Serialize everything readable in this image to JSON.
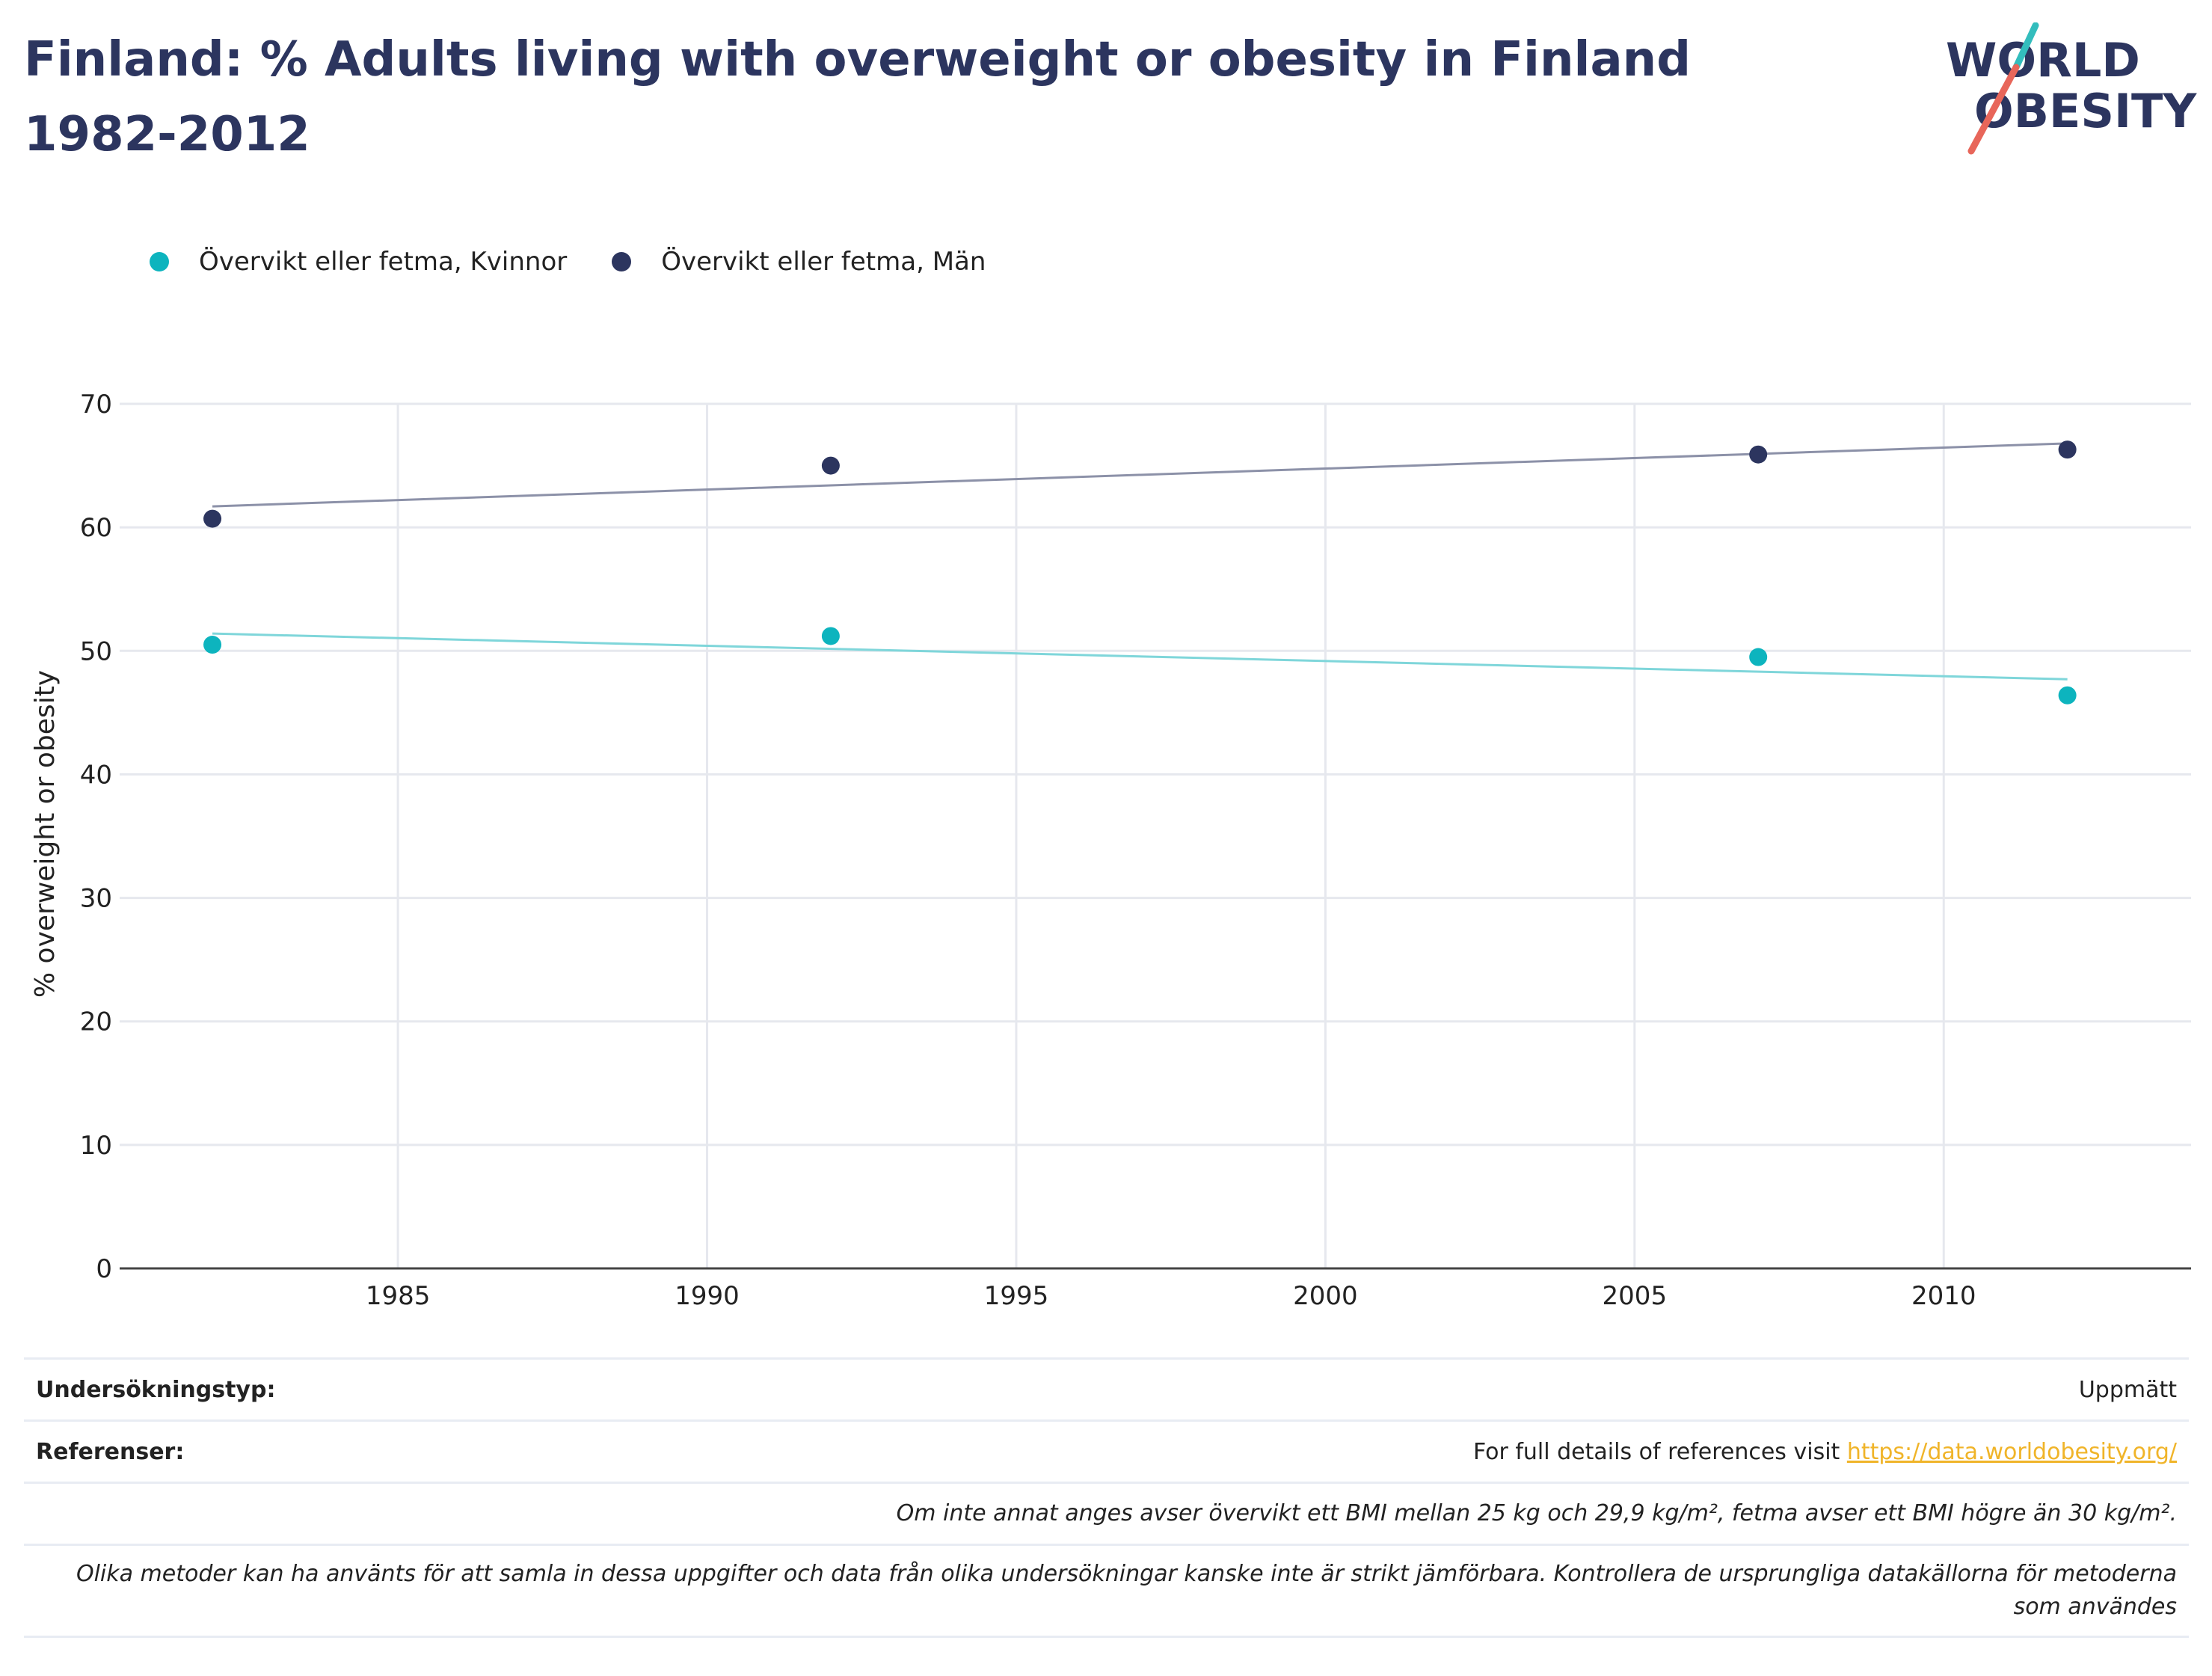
{
  "title": "Finland: % Adults living with overweight or obesity in Finland 1982-2012",
  "logo": {
    "line1": "WORLD",
    "line2": "OBESITY",
    "text_color": "#2c355f",
    "accent_teal": "#33bdbd",
    "accent_red": "#e8665a"
  },
  "legend": [
    {
      "label": "Övervikt eller fetma, Kvinnor",
      "color": "#0db4be"
    },
    {
      "label": "Övervikt eller fetma, Män",
      "color": "#2c355f"
    }
  ],
  "chart_data": {
    "type": "scatter",
    "title": "Finland: % Adults living with overweight or obesity in Finland 1982-2012",
    "xlabel": "",
    "ylabel": "% overweight or obesity",
    "xlim": [
      1980.5,
      2014
    ],
    "ylim": [
      0,
      70
    ],
    "xticks": [
      1985,
      1990,
      1995,
      2000,
      2005,
      2010
    ],
    "yticks": [
      0,
      10,
      20,
      30,
      40,
      50,
      60,
      70
    ],
    "grid": true,
    "legend_position": "top-left",
    "series": [
      {
        "name": "Övervikt eller fetma, Kvinnor",
        "color": "#0db4be",
        "trend_color": "#7fd6da",
        "x": [
          1982,
          1992,
          2007,
          2012
        ],
        "y": [
          50.5,
          51.2,
          49.5,
          46.4
        ],
        "trendline": {
          "x": [
            1982,
            2012
          ],
          "y": [
            51.4,
            47.7
          ]
        }
      },
      {
        "name": "Övervikt eller fetma, Män",
        "color": "#2c355f",
        "trend_color": "#8c91a8",
        "x": [
          1982,
          1992,
          2007,
          2012
        ],
        "y": [
          60.7,
          65.0,
          65.9,
          66.3
        ],
        "trendline": {
          "x": [
            1982,
            2012
          ],
          "y": [
            61.7,
            66.8
          ]
        }
      }
    ]
  },
  "footer": {
    "survey_type_label": "Undersökningstyp:",
    "survey_type_value": "Uppmätt",
    "references_label": "Referenser:",
    "references_text": "For full details of references visit ",
    "references_link": "https://data.worldobesity.org/",
    "note_bmi": "Om inte annat anges avser övervikt ett BMI mellan 25 kg och 29,9 kg/m², fetma avser ett BMI högre än 30 kg/m².",
    "note_methods": "Olika metoder kan ha använts för att samla in dessa uppgifter och data från olika undersökningar kanske inte är strikt jämförbara. Kontrollera de ursprungliga datakällorna för metoderna som användes"
  }
}
